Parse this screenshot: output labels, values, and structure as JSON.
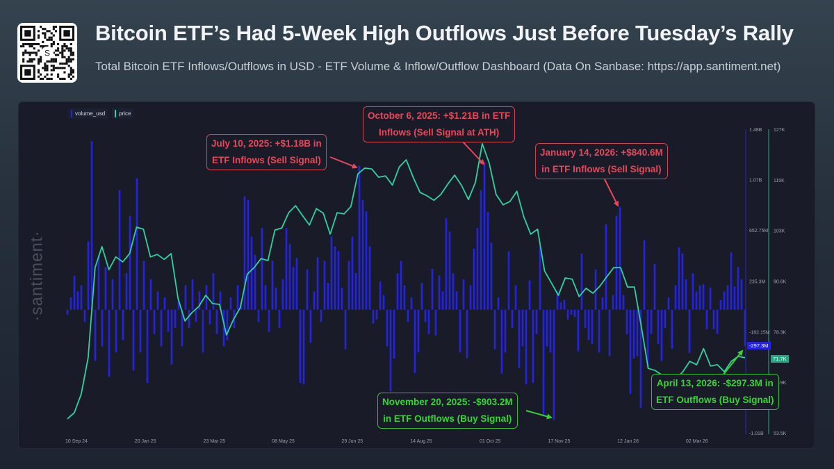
{
  "header": {
    "title": "Bitcoin ETF’s Had 5-Week High Outflows Just Before Tuesday’s Rally",
    "subtitle": "Total Bitcoin ETF Inflows/Outflows in USD - ETF Volume & Inflow/Outflow Dashboard (Data On Sanbase: https://app.santiment.net)",
    "qr_logo_letter": "S"
  },
  "watermark": "·santiment·",
  "colors": {
    "volume": "#2424e0",
    "price": "#2ed3a0",
    "sell_signal": "#e8475a",
    "buy_signal": "#35d534"
  },
  "legend": [
    {
      "label": "volume_usd",
      "color": "#2424e0"
    },
    {
      "label": "price",
      "color": "#2ed3a0"
    }
  ],
  "annotations": [
    {
      "id": "jul10",
      "type": "sell",
      "lines": [
        "July 10, 2025: +$1.18B in",
        "ETF Inflows (Sell Signal)"
      ]
    },
    {
      "id": "oct6",
      "type": "sell",
      "lines": [
        "October 6, 2025: +$1.21B in ETF",
        "Inflows (Sell Signal at ATH)"
      ]
    },
    {
      "id": "jan14",
      "type": "sell",
      "lines": [
        "January 14, 2026: +$840.6M",
        "in ETF Inflows (Sell Signal)"
      ]
    },
    {
      "id": "nov20",
      "type": "buy",
      "lines": [
        "November 20, 2025: -$903.2M",
        "in ETF Outflows (Buy Signal)"
      ]
    },
    {
      "id": "apr13",
      "type": "buy",
      "lines": [
        "April 13, 2026: -$297.3M in",
        "ETF Outflows (Buy Signal)"
      ]
    }
  ],
  "chart_data": {
    "type": "bar+line",
    "title": "",
    "x_ticks": [
      "10 Sep 24",
      "20 Jan 25",
      "23 Mar 25",
      "08 May 25",
      "29 Jun 25",
      "14 Aug 25",
      "01 Oct 25",
      "17 Nov 25",
      "12 Jan 26",
      "02 Mar 26"
    ],
    "volume_axis": {
      "ticks": [
        "1.48B",
        "1.07B",
        "652.75M",
        "235.3M",
        "-182.15M",
        "-1.01B"
      ],
      "ylim_millions": [
        -1010,
        1480
      ]
    },
    "price_axis": {
      "ticks": [
        "127K",
        "115K",
        "103K",
        "90.6K",
        "78.3K",
        "65.9K",
        "53.5K"
      ],
      "ylim_thousands": [
        53.5,
        127
      ]
    },
    "last_values": {
      "volume_usd": "-297.3M",
      "price": "71.7K"
    },
    "grid": false,
    "legend_position": "top-left",
    "series": [
      {
        "name": "volume_usd",
        "type": "bar",
        "unit": "USD millions",
        "values": [
          -40,
          100,
          280,
          150,
          200,
          -100,
          560,
          1380,
          -420,
          450,
          -300,
          350,
          -550,
          250,
          -350,
          980,
          -250,
          300,
          770,
          -500,
          1077,
          -350,
          400,
          -600,
          250,
          -200,
          150,
          -300,
          100,
          -180,
          -450,
          -150,
          80,
          -300,
          200,
          -150,
          250,
          -100,
          150,
          -350,
          200,
          -120,
          300,
          -200,
          150,
          -300,
          -250,
          100,
          -150,
          200,
          60,
          930,
          900,
          600,
          450,
          -100,
          670,
          200,
          -180,
          400,
          180,
          -150,
          250,
          670,
          540,
          350,
          425,
          -600,
          -610,
          330,
          -270,
          150,
          430,
          -100,
          400,
          220,
          600,
          520,
          480,
          180,
          -325,
          400,
          600,
          300,
          1180,
          900,
          805,
          520,
          -115,
          -80,
          230,
          120,
          -300,
          -670,
          -400,
          300,
          400,
          200,
          -100,
          100,
          -520,
          -350,
          220,
          -100,
          -200,
          335,
          -210,
          280,
          150,
          750,
          640,
          300,
          150,
          -350,
          250,
          -400,
          200,
          500,
          670,
          980,
          1210,
          800,
          550,
          -325,
          100,
          -525,
          -350,
          480,
          -150,
          200,
          -480,
          -300,
          -610,
          240,
          -600,
          -200,
          520,
          -860,
          -300,
          -350,
          -903.2,
          150,
          60,
          80,
          -80,
          -40,
          -60,
          -340,
          460,
          -150,
          -250,
          -280,
          330,
          -350,
          100,
          700,
          -380,
          120,
          770,
          840.6,
          120,
          -200,
          -690,
          -400,
          -380,
          -805,
          570,
          -480,
          -200,
          375,
          -280,
          -420,
          -150,
          100,
          -320,
          200,
          510,
          460,
          250,
          -355,
          300,
          150,
          200,
          210,
          -160,
          180,
          -160,
          -200,
          80,
          150,
          200,
          470,
          190,
          350,
          250,
          -297.3
        ]
      },
      {
        "name": "price",
        "type": "line",
        "unit": "USD thousands",
        "values": [
          56.9,
          58.4,
          62.9,
          71.7,
          93.5,
          98.6,
          93.0,
          96.1,
          94.9,
          96.9,
          103.3,
          102.8,
          96.1,
          96.7,
          95.5,
          96.9,
          86.0,
          80.6,
          82.6,
          84.1,
          86.8,
          84.8,
          84.6,
          77.2,
          80.9,
          83.8,
          91.9,
          93.5,
          95.7,
          95.2,
          102.6,
          103.1,
          106.8,
          108.5,
          106.1,
          103.8,
          107.8,
          106.7,
          101.6,
          106.8,
          106.5,
          108.3,
          116.2,
          117.6,
          117.4,
          115.4,
          115.7,
          113.5,
          117.9,
          119.6,
          115.4,
          111.7,
          110.9,
          109.8,
          111.2,
          113.7,
          115.9,
          113.4,
          110.0,
          114.1,
          123.5,
          118.8,
          111.2,
          108.7,
          109.5,
          112.0,
          105.8,
          101.6,
          102.8,
          92.7,
          89.8,
          86.8,
          91.0,
          90.7,
          86.5,
          88.5,
          87.3,
          89.0,
          91.3,
          93.5,
          93.5,
          88.8,
          88.8,
          79.2,
          69.1,
          68.6,
          67.5,
          66.6,
          66.6,
          68.3,
          70.8,
          70.0,
          73.9,
          69.7,
          70.0,
          68.3,
          70.8,
          72.0,
          71.7
        ]
      }
    ]
  }
}
